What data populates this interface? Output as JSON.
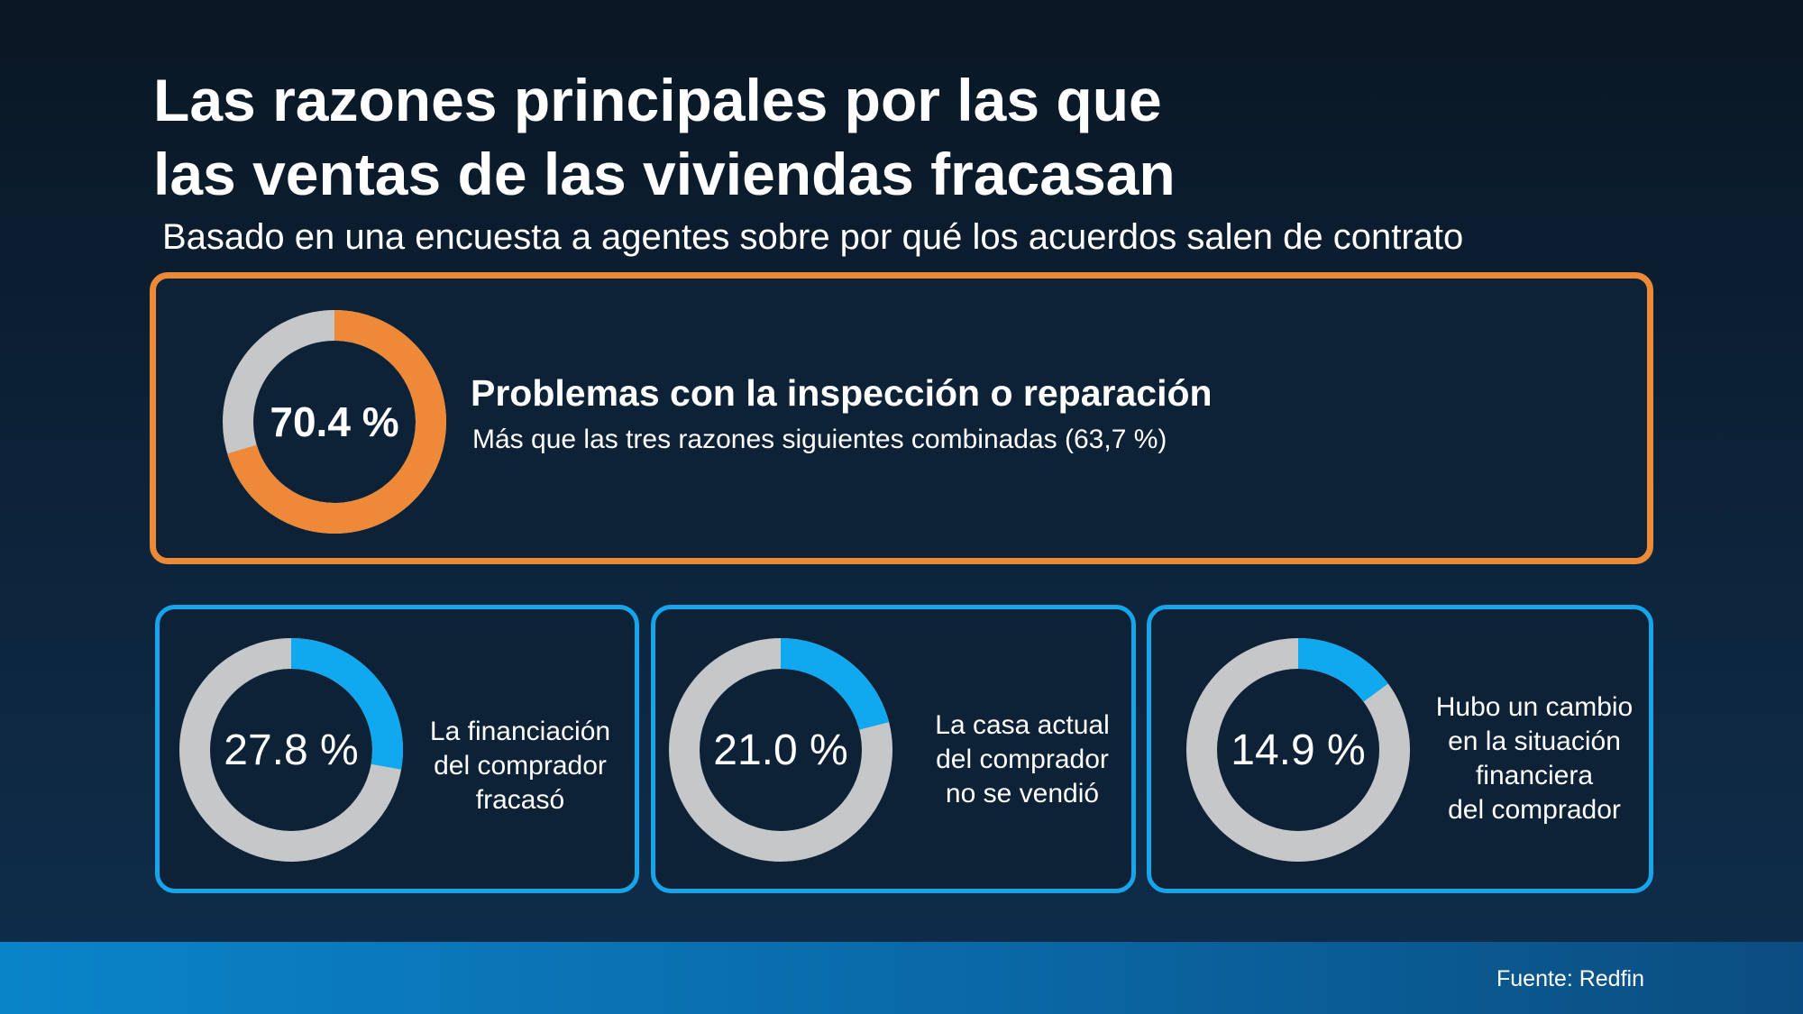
{
  "header": {
    "title_line1": "Las razones principales por las que",
    "title_line2": "las ventas de las viviendas fracasan",
    "subtitle": "Basado en una encuesta a agentes sobre por qué los acuerdos salen de contrato"
  },
  "colors": {
    "main_accent": "#ee8a37",
    "secondary_accent": "#10a8ee",
    "ring_remainder": "#c5c7c9",
    "card_border_blue": "#18a4e8"
  },
  "chart_data": [
    {
      "type": "pie",
      "value": 70.4,
      "value_label": "70.4 %",
      "heading": "Problemas con la inspección o reparación",
      "note": "Más que las tres razones siguientes combinadas (63,7 %)"
    },
    {
      "type": "pie",
      "value": 27.8,
      "value_label": "27.8 %",
      "label_lines": [
        "La financiación",
        "del comprador",
        "fracasó"
      ]
    },
    {
      "type": "pie",
      "value": 21.0,
      "value_label": "21.0 %",
      "label_lines": [
        "La casa actual",
        "del comprador",
        "no se vendió"
      ]
    },
    {
      "type": "pie",
      "value": 14.9,
      "value_label": "14.9 %",
      "label_lines": [
        "Hubo un cambio",
        "en la situación",
        "financiera",
        "del comprador"
      ]
    }
  ],
  "footer": {
    "source": "Fuente: Redfin"
  }
}
